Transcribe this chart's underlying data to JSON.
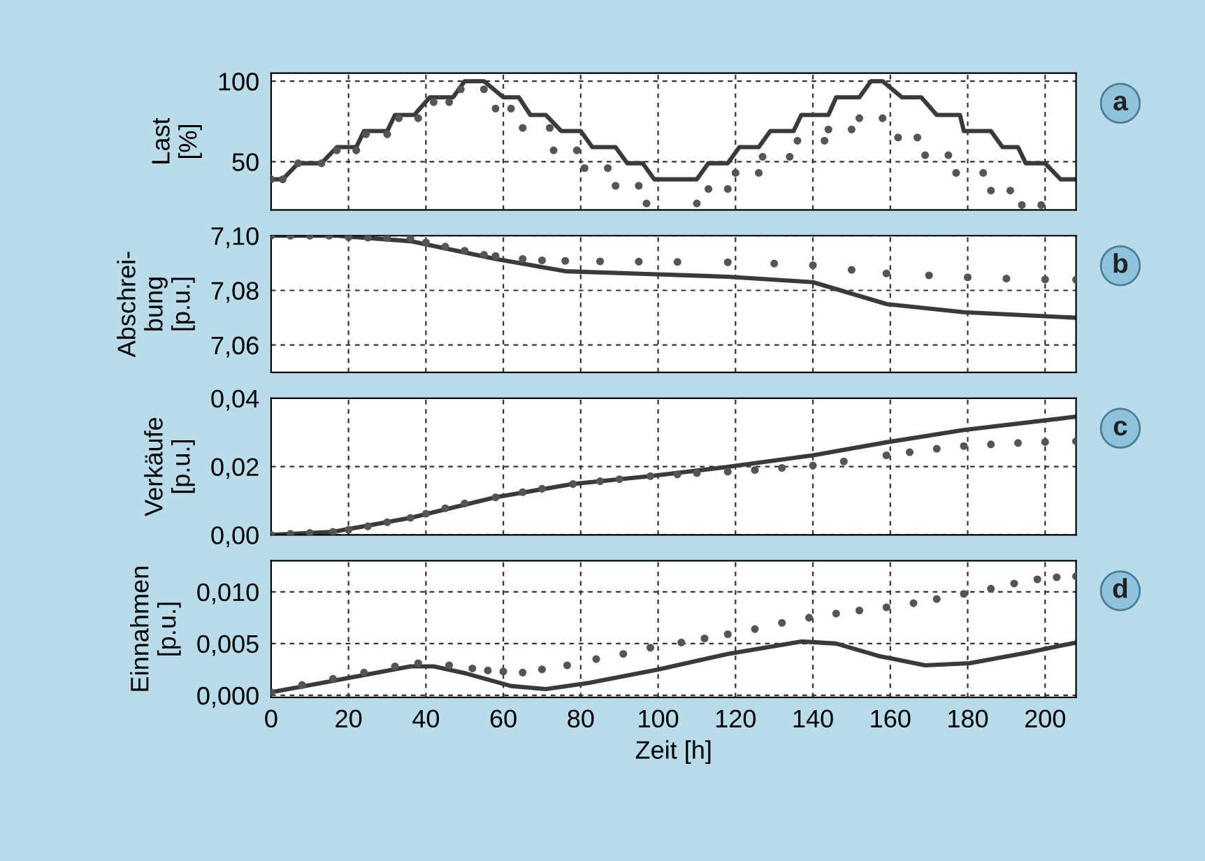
{
  "chart_data": [
    {
      "type": "line",
      "ylabel": "Last\n[%]",
      "annotations": [
        "a"
      ],
      "xlim": [
        0,
        208
      ],
      "xticks": [
        0,
        20,
        40,
        60,
        80,
        100,
        120,
        140,
        160,
        180,
        200
      ],
      "ylim": [
        20,
        105
      ],
      "yticks": [
        50,
        100
      ],
      "grid": true,
      "tick_labels": "y",
      "series": [
        {
          "color": "#3a3a3a",
          "line_style": "solid",
          "marker": "none",
          "x": [
            0,
            3,
            7,
            13,
            17,
            22,
            24,
            30,
            32,
            37,
            41,
            47,
            50,
            55,
            60,
            64,
            67,
            71,
            75,
            80,
            83,
            89,
            92,
            96,
            99,
            110,
            113,
            118,
            121,
            126,
            129,
            135,
            137,
            144,
            146,
            152,
            155,
            158,
            163,
            168,
            172,
            178,
            179,
            186,
            189,
            193,
            195,
            200,
            204,
            208
          ],
          "values": [
            39,
            39,
            49,
            49,
            59,
            59,
            69,
            69,
            79,
            79,
            90,
            90,
            100,
            100,
            90,
            90,
            79,
            79,
            69,
            69,
            59,
            59,
            49,
            49,
            39,
            39,
            49,
            49,
            59,
            59,
            69,
            69,
            79,
            79,
            90,
            90,
            100,
            100,
            90,
            90,
            79,
            79,
            69,
            69,
            59,
            59,
            49,
            49,
            39,
            39
          ]
        },
        {
          "type": "scatter",
          "color": "#555555",
          "marker": "circle",
          "x": [
            0,
            3,
            7,
            13,
            17,
            22,
            24.5,
            30,
            33,
            38,
            42,
            46,
            49,
            55,
            58,
            62,
            65,
            72,
            73,
            79,
            81,
            87,
            89,
            95,
            97,
            110,
            113,
            118,
            120,
            126,
            127,
            134,
            136,
            143,
            144,
            150,
            152,
            158,
            162,
            167,
            169,
            175,
            177,
            184,
            186,
            191,
            194,
            199
          ],
          "values": [
            39,
            39,
            49,
            49,
            57,
            57,
            67,
            67,
            77,
            77,
            87,
            87,
            95,
            95,
            83,
            83,
            71,
            71,
            57,
            57,
            46,
            46,
            35,
            35,
            24,
            24,
            33,
            33,
            43,
            43,
            53,
            53,
            63,
            63,
            70,
            70,
            77,
            77,
            65,
            65,
            54,
            54,
            43,
            43,
            32,
            32,
            23,
            23
          ]
        }
      ]
    },
    {
      "type": "line",
      "ylabel": "Abschrei-\nbung\n[p.u.]",
      "annotations": [
        "b"
      ],
      "xlim": [
        0,
        208
      ],
      "xticks": [
        0,
        20,
        40,
        60,
        80,
        100,
        120,
        140,
        160,
        180,
        200
      ],
      "ylim": [
        7.05,
        7.1
      ],
      "yticks": [
        {
          "value": 7.06,
          "label": "7,06"
        },
        {
          "value": 7.08,
          "label": "7,08"
        },
        {
          "value": 7.1,
          "label": "7,10"
        }
      ],
      "grid": true,
      "tick_labels": "y",
      "series": [
        {
          "color": "#3a3a3a",
          "line_style": "solid",
          "marker": "none",
          "x": [
            0,
            17,
            36,
            58,
            76,
            97,
            118,
            140,
            159,
            179,
            208
          ],
          "values": [
            7.1,
            7.1,
            7.098,
            7.0915,
            7.087,
            7.086,
            7.085,
            7.083,
            7.075,
            7.072,
            7.07
          ]
        },
        {
          "type": "scatter",
          "color": "#555555",
          "marker": "circle",
          "x": [
            0,
            5,
            10,
            15,
            20,
            25,
            30,
            36,
            40,
            45,
            50,
            55,
            58,
            65,
            70,
            76,
            85,
            95,
            105,
            118,
            130,
            140,
            150,
            159,
            170,
            180,
            190,
            200,
            208
          ],
          "values": [
            7.1,
            7.1,
            7.1,
            7.1,
            7.0995,
            7.0993,
            7.0991,
            7.099,
            7.0975,
            7.096,
            7.0945,
            7.093,
            7.0926,
            7.0915,
            7.091,
            7.0908,
            7.0906,
            7.0905,
            7.0904,
            7.0903,
            7.0898,
            7.0892,
            7.0875,
            7.0862,
            7.0855,
            7.0848,
            7.0843,
            7.084,
            7.0839
          ]
        }
      ]
    },
    {
      "type": "line",
      "ylabel": "Verkäufe\n[p.u.]",
      "annotations": [
        "c"
      ],
      "xlim": [
        0,
        208
      ],
      "xticks": [
        0,
        20,
        40,
        60,
        80,
        100,
        120,
        140,
        160,
        180,
        200
      ],
      "ylim": [
        0,
        0.04
      ],
      "yticks": [
        {
          "value": 0,
          "label": "0,00"
        },
        {
          "value": 0.02,
          "label": "0,02"
        },
        {
          "value": 0.04,
          "label": "0,04"
        }
      ],
      "grid": true,
      "tick_labels": "y",
      "series": [
        {
          "color": "#3a3a3a",
          "line_style": "solid",
          "marker": "none",
          "x": [
            0,
            16,
            36,
            58,
            78,
            98,
            118,
            140,
            159,
            179,
            208
          ],
          "values": [
            0,
            0.0009,
            0.005,
            0.011,
            0.0149,
            0.0172,
            0.0199,
            0.0233,
            0.0271,
            0.0307,
            0.0346
          ]
        },
        {
          "type": "scatter",
          "color": "#555555",
          "marker": "circle",
          "x": [
            0,
            5,
            10,
            16,
            20,
            25,
            30,
            36,
            40,
            45,
            50,
            58,
            65,
            70,
            78,
            85,
            90,
            98,
            105,
            110,
            118,
            125,
            132,
            140,
            148,
            159,
            165,
            172,
            179,
            186,
            193,
            200,
            208
          ],
          "values": [
            0,
            0.0003,
            0.0006,
            0.0009,
            0.0015,
            0.0025,
            0.0037,
            0.005,
            0.0062,
            0.0078,
            0.0092,
            0.011,
            0.0125,
            0.0135,
            0.0149,
            0.0157,
            0.0163,
            0.0172,
            0.0177,
            0.0181,
            0.0185,
            0.019,
            0.0196,
            0.0203,
            0.0215,
            0.0233,
            0.0242,
            0.0252,
            0.026,
            0.0265,
            0.0269,
            0.0272,
            0.0274
          ]
        }
      ]
    },
    {
      "type": "line",
      "ylabel": "Einnahmen\n[p.u.]",
      "xlabel": "Zeit [h]",
      "annotations": [
        "d"
      ],
      "xlim": [
        0,
        208
      ],
      "xticks": [
        0,
        20,
        40,
        60,
        80,
        100,
        120,
        140,
        160,
        180,
        200
      ],
      "ylim": [
        -0.0002,
        0.013
      ],
      "yticks": [
        {
          "value": 0,
          "label": "0,000"
        },
        {
          "value": 0.005,
          "label": "0,005"
        },
        {
          "value": 0.01,
          "label": "0,010"
        }
      ],
      "grid": true,
      "series": [
        {
          "color": "#3a3a3a",
          "line_style": "solid",
          "marker": "none",
          "x": [
            0,
            16,
            36,
            42,
            50.5,
            62,
            71,
            82,
            100,
            118,
            137,
            146,
            157,
            169,
            180.5,
            195,
            208
          ],
          "values": [
            0.0003,
            0.0014,
            0.0028,
            0.0028,
            0.0021,
            0.0009,
            0.0006,
            0.0012,
            0.0025,
            0.004,
            0.0052,
            0.005,
            0.0038,
            0.0029,
            0.0031,
            0.0041,
            0.0051
          ]
        },
        {
          "type": "scatter",
          "color": "#555555",
          "marker": "circle",
          "x": [
            0,
            8,
            16,
            24,
            32,
            38,
            46,
            52,
            56,
            60,
            65,
            70,
            76.5,
            84,
            91,
            98,
            106,
            112,
            118,
            125,
            132,
            139,
            146,
            152,
            159,
            166,
            172,
            179,
            186,
            192,
            198,
            203,
            208
          ],
          "values": [
            0.0003,
            0.001,
            0.0016,
            0.0022,
            0.0028,
            0.0031,
            0.0029,
            0.0026,
            0.0024,
            0.0023,
            0.0022,
            0.0025,
            0.0029,
            0.0035,
            0.004,
            0.0046,
            0.0051,
            0.0055,
            0.0059,
            0.0064,
            0.007,
            0.0075,
            0.0079,
            0.0082,
            0.0085,
            0.0089,
            0.0093,
            0.0098,
            0.0103,
            0.0108,
            0.0112,
            0.0114,
            0.0115
          ]
        }
      ]
    }
  ]
}
